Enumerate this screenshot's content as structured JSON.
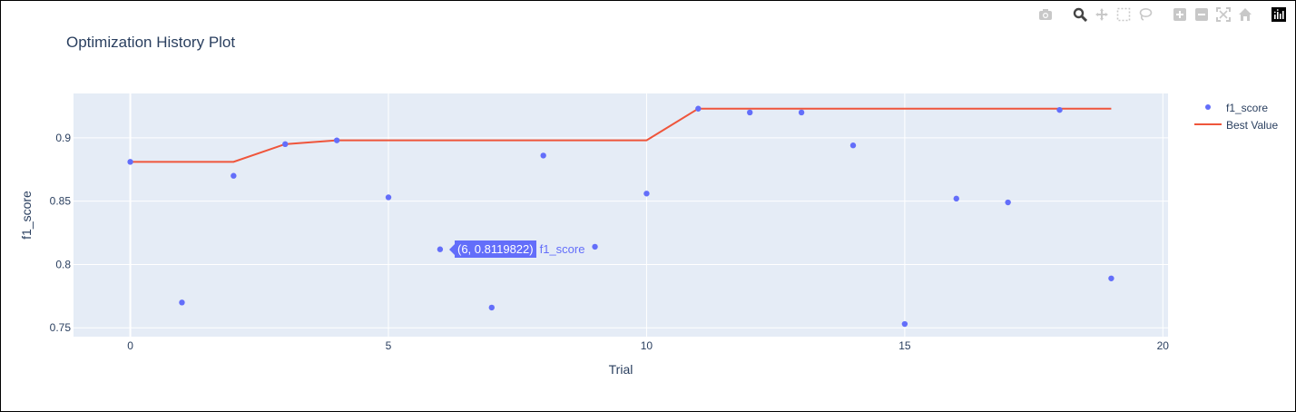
{
  "colors": {
    "background": "#ffffff",
    "plot_bg": "#e5ecf6",
    "grid": "#ffffff",
    "text": "#2a3f5f",
    "series_points": "#636efa",
    "series_line": "#ef553b"
  },
  "modebar": {
    "icons": [
      "camera-icon",
      "zoom-icon",
      "pan-icon",
      "box-select-icon",
      "lasso-select-icon",
      "zoom-in-icon",
      "zoom-out-icon",
      "autoscale-icon",
      "reset-axes-icon",
      "plotly-logo-icon"
    ]
  },
  "tooltip": {
    "text": "(6, 0.8119822)",
    "series": "f1_score"
  },
  "chart_data": {
    "type": "scatter",
    "title": "Optimization History Plot",
    "xlabel": "Trial",
    "ylabel": "f1_score",
    "xlim": [
      -1.1,
      20.1
    ],
    "ylim": [
      0.743,
      0.935
    ],
    "x_ticks": [
      0,
      5,
      10,
      15,
      20
    ],
    "y_ticks": [
      0.75,
      0.8,
      0.85,
      0.9
    ],
    "x_tick_labels": [
      "0",
      "5",
      "10",
      "15",
      "20"
    ],
    "y_tick_labels": [
      "0.75",
      "0.8",
      "0.85",
      "0.9"
    ],
    "grid": true,
    "legend_position": "right",
    "series": [
      {
        "name": "f1_score",
        "mode": "markers",
        "x": [
          0,
          1,
          2,
          3,
          4,
          5,
          6,
          7,
          8,
          9,
          10,
          11,
          12,
          13,
          14,
          15,
          16,
          17,
          18,
          19
        ],
        "y": [
          0.881,
          0.77,
          0.87,
          0.895,
          0.898,
          0.853,
          0.8119822,
          0.766,
          0.886,
          0.814,
          0.856,
          0.923,
          0.92,
          0.92,
          0.894,
          0.753,
          0.852,
          0.849,
          0.922,
          0.789
        ]
      },
      {
        "name": "Best Value",
        "mode": "lines",
        "x": [
          0,
          1,
          2,
          3,
          4,
          5,
          6,
          7,
          8,
          9,
          10,
          11,
          12,
          13,
          14,
          15,
          16,
          17,
          18,
          19
        ],
        "y": [
          0.881,
          0.881,
          0.881,
          0.895,
          0.898,
          0.898,
          0.898,
          0.898,
          0.898,
          0.898,
          0.898,
          0.923,
          0.923,
          0.923,
          0.923,
          0.923,
          0.923,
          0.923,
          0.923,
          0.923
        ]
      }
    ]
  }
}
